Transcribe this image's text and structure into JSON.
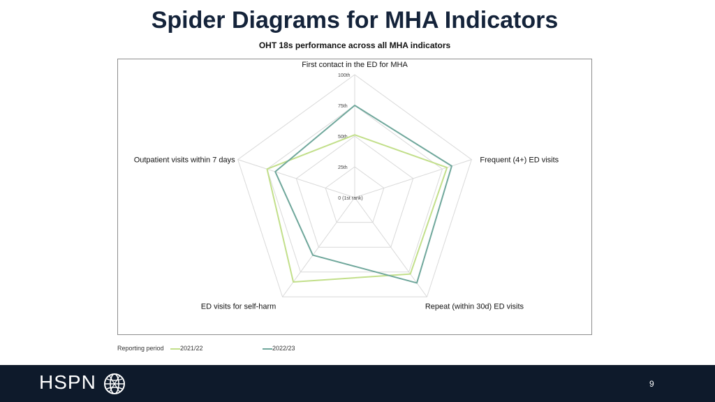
{
  "slide": {
    "title": "Spider Diagrams for MHA Indicators",
    "page_number": "9",
    "logo": "HSPN"
  },
  "legend": {
    "title": "Reporting period"
  },
  "colors": {
    "series_2021_22": "#c2df8a",
    "series_2022_23": "#6fa79b",
    "grid": "#d9d9d9",
    "footer_bg": "#0e1a2b",
    "title": "#14233a"
  },
  "chart_data": {
    "type": "radar",
    "title": "OHT 18s performance across all MHA indicators",
    "axes": [
      "First contact in the ED for MHA",
      "Frequent (4+) ED visits",
      "Repeat (within 30d) ED visits",
      "ED visits for self-harm",
      "Outpatient visits within 7 days"
    ],
    "ticks": [
      "0 (1st rank)",
      "25th",
      "50th",
      "75th",
      "100th"
    ],
    "range": [
      0,
      100
    ],
    "grid": true,
    "legend_position": "bottom-left",
    "series": [
      {
        "name": "2021/22",
        "values": [
          51,
          79,
          77,
          85,
          75
        ]
      },
      {
        "name": "2022/23",
        "values": [
          75,
          83,
          86,
          58,
          68
        ]
      }
    ]
  }
}
